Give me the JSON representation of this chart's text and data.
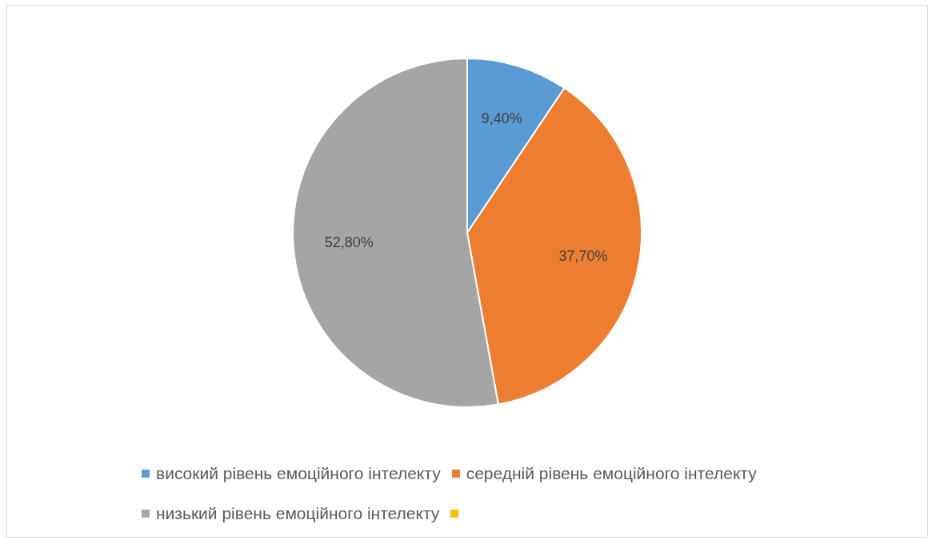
{
  "chart_data": {
    "type": "pie",
    "categories": [
      "високий рівень емоційного інтелекту",
      "середній рівень емоційного інтелекту",
      "низький рівень емоційного інтелекту",
      null
    ],
    "values": [
      9.4,
      37.7,
      52.8,
      0
    ],
    "colors": [
      "#5b9bd5",
      "#ed7d31",
      "#a5a5a5",
      "#ffc000"
    ],
    "value_labels": [
      "9,40%",
      "37,70%",
      "52,80%",
      null
    ],
    "legend": "bottom"
  }
}
